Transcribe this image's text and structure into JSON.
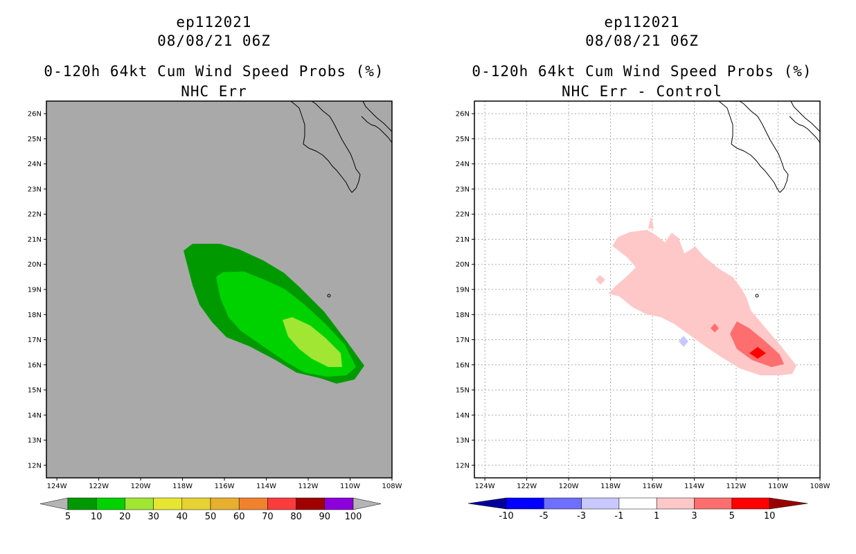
{
  "left_panel": {
    "storm_id": "ep112021",
    "datetime": "08/08/21 06Z",
    "product": "0-120h 64kt Cum Wind Speed Probs (%)",
    "subtitle": "NHC Err",
    "colorbar": {
      "labels": [
        "5",
        "10",
        "20",
        "30",
        "40",
        "50",
        "60",
        "70",
        "80",
        "90",
        "100"
      ],
      "colors": [
        "#009a00",
        "#00d200",
        "#a0e632",
        "#e6e632",
        "#e6d232",
        "#e6af2d",
        "#f0822d",
        "#fa3c3c",
        "#a00000",
        "#8c00dc"
      ],
      "end_color": "#b4b4b4"
    }
  },
  "right_panel": {
    "storm_id": "ep112021",
    "datetime": "08/08/21 06Z",
    "product": "0-120h 64kt Cum Wind Speed Probs (%)",
    "subtitle": "NHC Err - Control",
    "colorbar": {
      "labels": [
        "-10",
        "-5",
        "-3",
        "-1",
        "1",
        "3",
        "5",
        "10"
      ],
      "colors": [
        "#00009a",
        "#0000ff",
        "#6e6eff",
        "#c8c8ff",
        "#ffffff",
        "#ffc8c8",
        "#ff6e6e",
        "#ff0000",
        "#9a0000"
      ]
    }
  },
  "map_axes": {
    "lat_labels": [
      "26N",
      "25N",
      "24N",
      "23N",
      "22N",
      "21N",
      "20N",
      "19N",
      "18N",
      "17N",
      "16N",
      "15N",
      "14N",
      "13N",
      "12N"
    ],
    "lon_labels": [
      "124W",
      "122W",
      "120W",
      "118W",
      "116W",
      "114W",
      "112W",
      "110W",
      "108W"
    ],
    "land_fill": "#a9a9a9",
    "water_fill": "#ffffff"
  },
  "colors": {
    "prob_5": "#009a00",
    "prob_10": "#00d200",
    "prob_20": "#a0e632",
    "diff_1": "#ffc8c8",
    "diff_3": "#ff6e6e",
    "diff_5": "#ff0000",
    "diff_neg": "#c8c8ff"
  }
}
